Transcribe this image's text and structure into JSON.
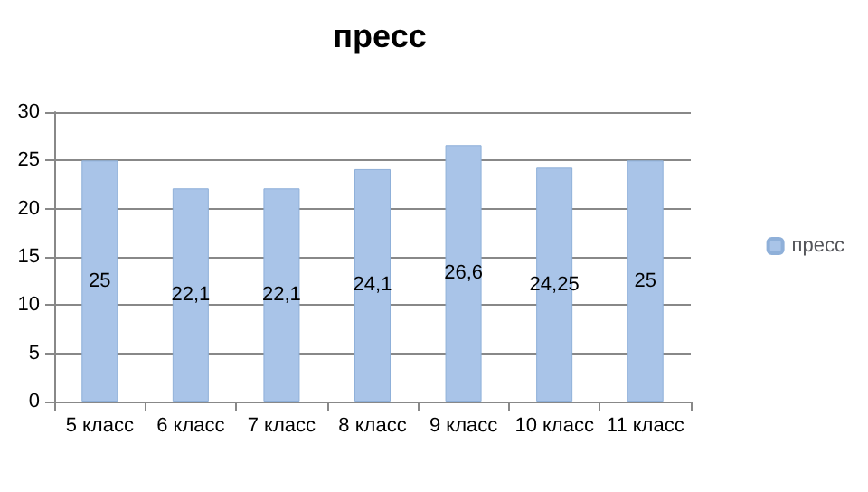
{
  "chart_data": {
    "type": "bar",
    "title": "пресс",
    "categories": [
      "5 класс",
      "6 класс",
      "7 класс",
      "8 класс",
      "9 класс",
      "10 класс",
      "11 класс"
    ],
    "series": [
      {
        "name": "пресс",
        "color": "#a9c4e8",
        "values": [
          25,
          22.1,
          22.1,
          24.1,
          26.6,
          24.25,
          25
        ],
        "value_labels": [
          "25",
          "22,1",
          "22,1",
          "24,1",
          "26,6",
          "24,25",
          "25"
        ]
      }
    ],
    "ylim": [
      0,
      30
    ],
    "yticks": [
      0,
      5,
      10,
      15,
      20,
      25,
      30
    ],
    "grid": "y",
    "legend": "right"
  }
}
